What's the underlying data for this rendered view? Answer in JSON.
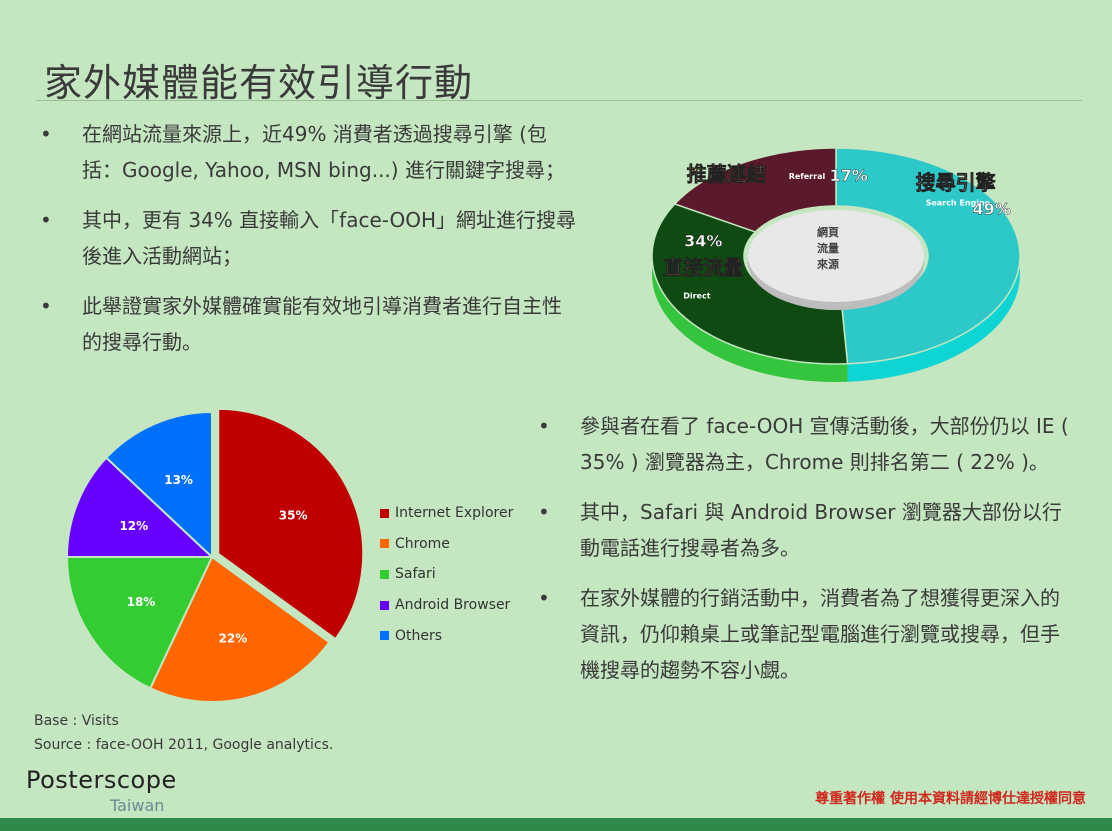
{
  "title": "家外媒體能有效引導行動",
  "bullets_top": [
    "在網站流量來源上，近49% 消費者透過搜尋引擎 (包括：Google, Yahoo, MSN bing...) 進行關鍵字搜尋；",
    "其中，更有 34% 直接輸入「face-OOH」網址進行搜尋後進入活動網站；",
    "此舉證實家外媒體確實能有效地引導消費者進行自主性的搜尋行動。"
  ],
  "bullets_right": [
    "參與者在看了 face-OOH 宣傳活動後，大部份仍以 IE ( 35% ) 瀏覽器為主，Chrome 則排名第二 ( 22% )。",
    "其中，Safari 與 Android Browser 瀏覽器大部份以行動電話進行搜尋者為多。",
    "在家外媒體的行銷活動中，消費者為了想獲得更深入的資訊，仍仰賴桌上或筆記型電腦進行瀏覽或搜尋，但手機搜尋的趨勢不容小覷。"
  ],
  "bullet_symbol": "•",
  "chart_data": [
    {
      "type": "pie",
      "categories": [
        "Internet Explorer",
        "Chrome",
        "Safari",
        "Android Browser",
        "Others"
      ],
      "values": [
        35,
        22,
        18,
        12,
        13
      ],
      "value_labels": [
        "35%",
        "22%",
        "18%",
        "12%",
        "13%"
      ],
      "colors": [
        "#c00000",
        "#ff6600",
        "#33cc33",
        "#6600ff",
        "#0070ff"
      ],
      "exploded_slice": "Internet Explorer",
      "legend_position": "right"
    },
    {
      "type": "pie",
      "style": "3d-donut",
      "center_label": "網頁流量來源",
      "categories": [
        "搜尋引擎",
        "直接流量",
        "推薦連結"
      ],
      "sublabels": [
        "Search Engine",
        "Direct",
        "Referral"
      ],
      "values": [
        49,
        34,
        17
      ],
      "value_labels": [
        "49%",
        "34%",
        "17%"
      ],
      "colors": [
        "#1fc7c7",
        "#2fbf3a",
        "#c23f6b"
      ]
    }
  ],
  "base_note": "Base : Visits",
  "source_note": "Source : face-OOH 2011, Google analytics.",
  "logo": {
    "name": "Posterscope",
    "sub": "Taiwan"
  },
  "copyright": "尊重著作權 使用本資料請經博仕達授權同意"
}
